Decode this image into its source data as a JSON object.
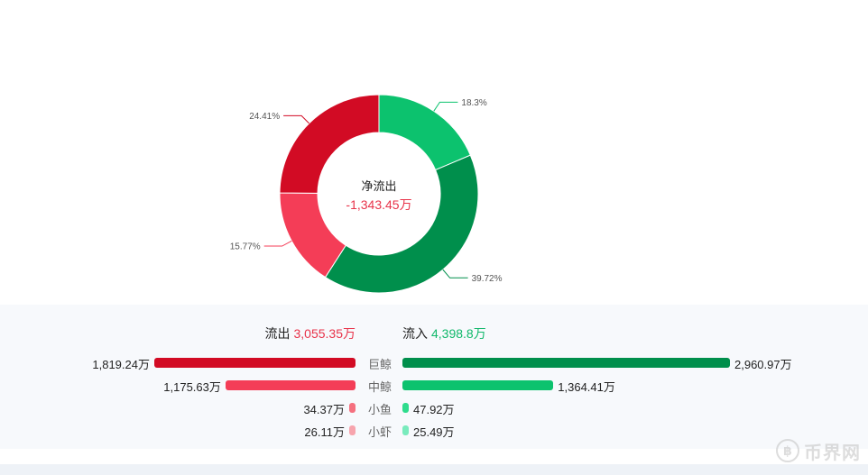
{
  "chart_data": {
    "type": "pie",
    "center": {
      "title": "净流出",
      "value": "-1,343.45万"
    },
    "slices": [
      {
        "category": "中鲸流入",
        "percent": 18.3,
        "label": "18.3%",
        "color": "#0cc26e"
      },
      {
        "category": "巨鲸流入",
        "percent": 39.72,
        "label": "39.72%",
        "color": "#008f4c"
      },
      {
        "category": "中鲸流出",
        "percent": 15.77,
        "label": "15.77%",
        "color": "#f43d57"
      },
      {
        "category": "巨鲸流出",
        "percent": 24.41,
        "label": "24.41%",
        "color": "#d20b24"
      }
    ]
  },
  "summary": {
    "out_label": "流出",
    "out_value": "3,055.35万",
    "in_label": "流入",
    "in_value": "4,398.8万"
  },
  "flow_rows": [
    {
      "category": "巨鲸",
      "out_value": 1819.24,
      "out_label": "1,819.24万",
      "in_value": 2960.97,
      "in_label": "2,960.97万",
      "out_color": "#d20b24",
      "in_color": "#008f4c"
    },
    {
      "category": "中鲸",
      "out_value": 1175.63,
      "out_label": "1,175.63万",
      "in_value": 1364.41,
      "in_label": "1,364.41万",
      "out_color": "#f43d57",
      "in_color": "#0cc26e"
    },
    {
      "category": "小鱼",
      "out_value": 34.37,
      "out_label": "34.37万",
      "in_value": 47.92,
      "in_label": "47.92万",
      "out_color": "#f5707f",
      "in_color": "#2fdc8d"
    },
    {
      "category": "小虾",
      "out_value": 26.11,
      "out_label": "26.11万",
      "in_value": 25.49,
      "in_label": "25.49万",
      "out_color": "#f7a4ad",
      "in_color": "#79ebbd"
    }
  ],
  "watermark": {
    "text": "币界网"
  },
  "icons": {
    "watermark_logo": "coin-logo-icon"
  }
}
